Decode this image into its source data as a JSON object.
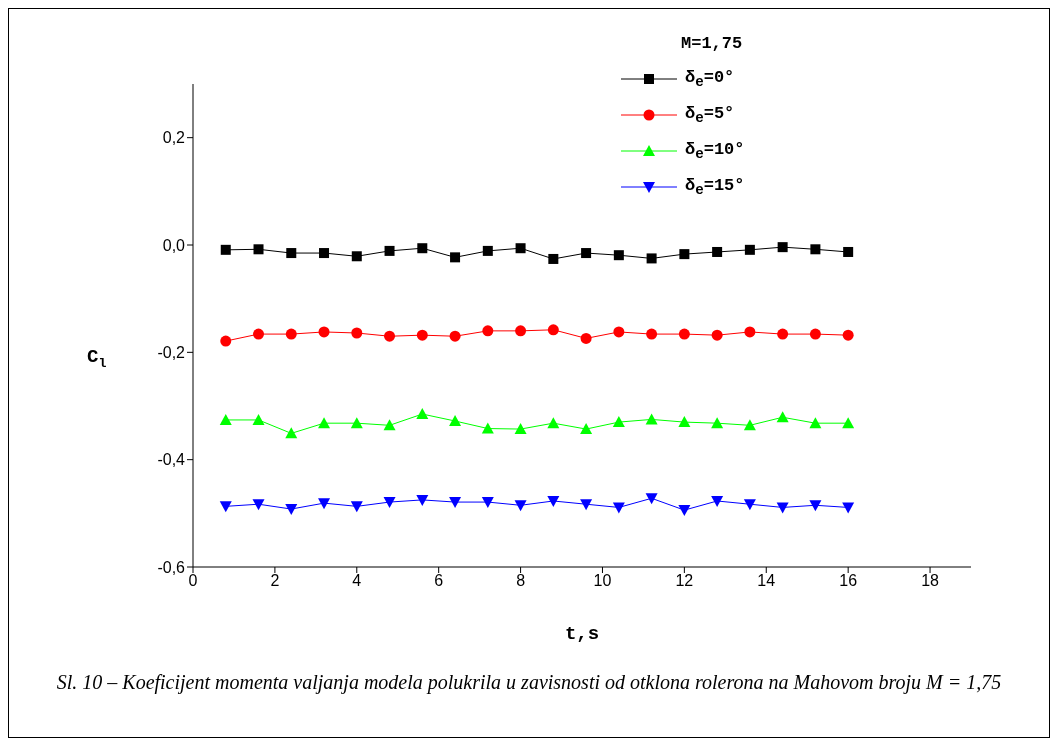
{
  "chart_data": {
    "type": "line",
    "xlabel": "t,s",
    "ylabel": "C$_{l}$",
    "legend_title": "M=1,75",
    "legend": "top right",
    "line_style": "solid",
    "x": [
      0.8,
      1.6,
      2.4,
      3.2,
      4.0,
      4.8,
      5.6,
      6.4,
      7.2,
      8.0,
      8.8,
      9.6,
      10.4,
      11.2,
      12.0,
      12.8,
      13.6,
      14.4,
      15.2,
      16.0
    ],
    "xlim": [
      0,
      19
    ],
    "xticks": [
      0,
      2,
      4,
      6,
      8,
      10,
      12,
      14,
      16,
      18
    ],
    "ylim": [
      -0.6,
      0.3
    ],
    "yticks": [
      {
        "value": -0.6,
        "label": "-0,6"
      },
      {
        "value": -0.4,
        "label": "-0,4"
      },
      {
        "value": -0.2,
        "label": "-0,2"
      },
      {
        "value": 0,
        "label": "0,0"
      },
      {
        "value": 0.2,
        "label": "0,2"
      }
    ],
    "series": [
      {
        "name": "δ$_{e}$=0°",
        "color": "#000000",
        "marker": "square",
        "values": [
          -0.009,
          -0.008,
          -0.015,
          -0.015,
          -0.021,
          -0.011,
          -0.006,
          -0.023,
          -0.011,
          -0.006,
          -0.026,
          -0.015,
          -0.019,
          -0.025,
          -0.017,
          -0.013,
          -0.009,
          -0.004,
          -0.008,
          -0.013
        ]
      },
      {
        "name": "δ$_{e}$=5°",
        "color": "#ff0000",
        "marker": "circle",
        "values": [
          -0.179,
          -0.166,
          -0.166,
          -0.162,
          -0.164,
          -0.17,
          -0.168,
          -0.17,
          -0.16,
          -0.16,
          -0.158,
          -0.174,
          -0.162,
          -0.166,
          -0.166,
          -0.168,
          -0.162,
          -0.166,
          -0.166,
          -0.168
        ]
      },
      {
        "name": "δ$_{e}$=10°",
        "color": "#00ff00",
        "marker": "triangle",
        "values": [
          -0.326,
          -0.326,
          -0.351,
          -0.332,
          -0.332,
          -0.336,
          -0.315,
          -0.328,
          -0.342,
          -0.343,
          -0.332,
          -0.343,
          -0.33,
          -0.325,
          -0.33,
          -0.332,
          -0.336,
          -0.321,
          -0.332,
          -0.332
        ]
      },
      {
        "name": "δ$_{e}$=15°",
        "color": "#0000ff",
        "marker": "triangle-down",
        "values": [
          -0.487,
          -0.483,
          -0.492,
          -0.481,
          -0.487,
          -0.479,
          -0.475,
          -0.479,
          -0.479,
          -0.485,
          -0.477,
          -0.483,
          -0.489,
          -0.472,
          -0.494,
          -0.477,
          -0.483,
          -0.489,
          -0.485,
          -0.489
        ]
      }
    ],
    "annotations": [
      "Sl. 10 – Koeficijent momenta valjanja modela polukrila u zavisnosti od otklona rolerona na Mahovom broju M = 1,75"
    ]
  }
}
